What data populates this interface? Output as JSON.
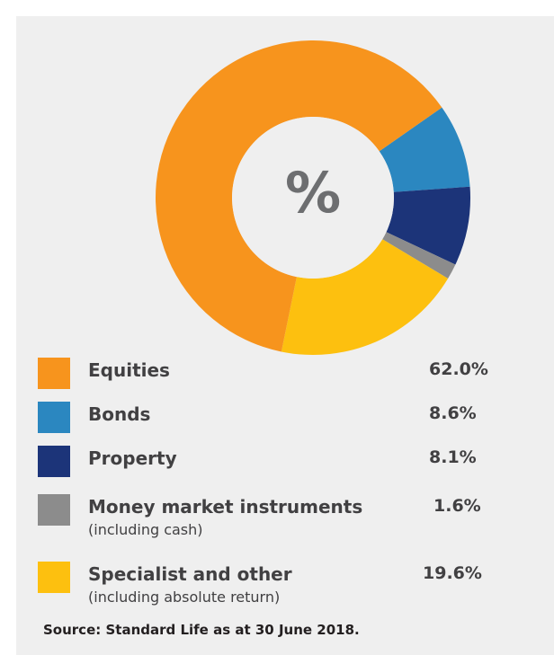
{
  "chart_data": {
    "type": "pie",
    "center_label": "%",
    "categories": [
      "Equities",
      "Bonds",
      "Property",
      "Money market instruments",
      "Specialist and other"
    ],
    "values": [
      62.0,
      8.6,
      8.1,
      1.6,
      19.6
    ],
    "value_labels": [
      "62.0%",
      "8.6%",
      "8.1%",
      "1.6%",
      "19.6%"
    ],
    "sublabels": [
      "",
      "",
      "",
      "(including cash)",
      "(including absolute return)"
    ],
    "colors": [
      "#f7941d",
      "#2b87c0",
      "#1c3479",
      "#8c8c8c",
      "#fdc00f"
    ],
    "legend_placement": "bottom",
    "source": "Source: Standard Life as at 30 June 2018."
  }
}
